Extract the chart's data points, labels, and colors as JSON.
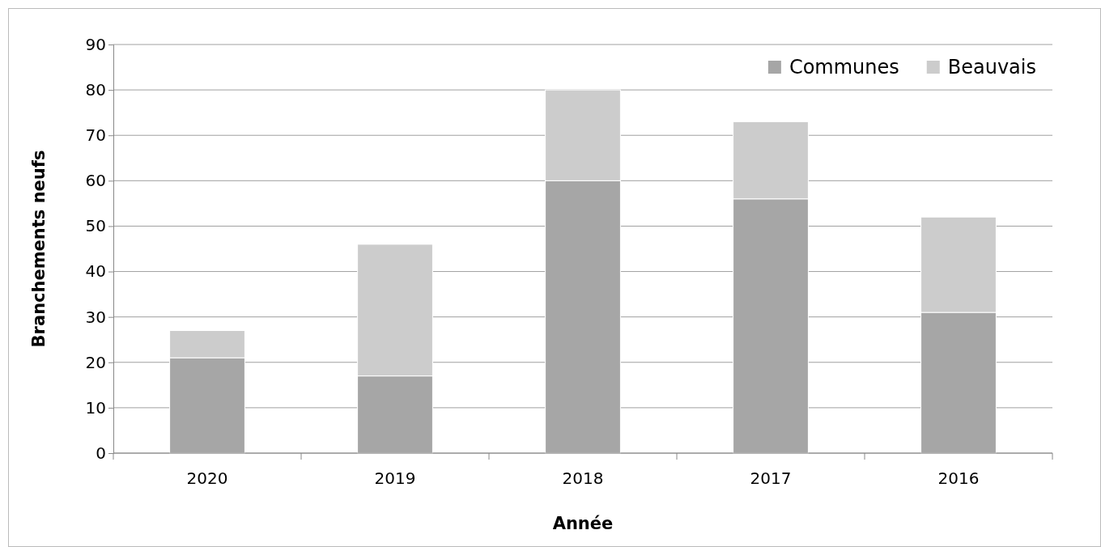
{
  "chart_data": {
    "type": "bar",
    "stacked": true,
    "xlabel": "Année",
    "ylabel": "Branchements neufs",
    "categories": [
      "2020",
      "2019",
      "2018",
      "2017",
      "2016"
    ],
    "series": [
      {
        "name": "Communes",
        "color": "#a6a6a6",
        "values": [
          21,
          17,
          60,
          56,
          31
        ]
      },
      {
        "name": "Beauvais",
        "color": "#cccccc",
        "values": [
          6,
          29,
          20,
          17,
          21
        ]
      }
    ],
    "ylim": [
      0,
      90
    ],
    "yticks": [
      0,
      10,
      20,
      30,
      40,
      50,
      60,
      70,
      80,
      90
    ],
    "grid": "y",
    "legend": "top right"
  }
}
